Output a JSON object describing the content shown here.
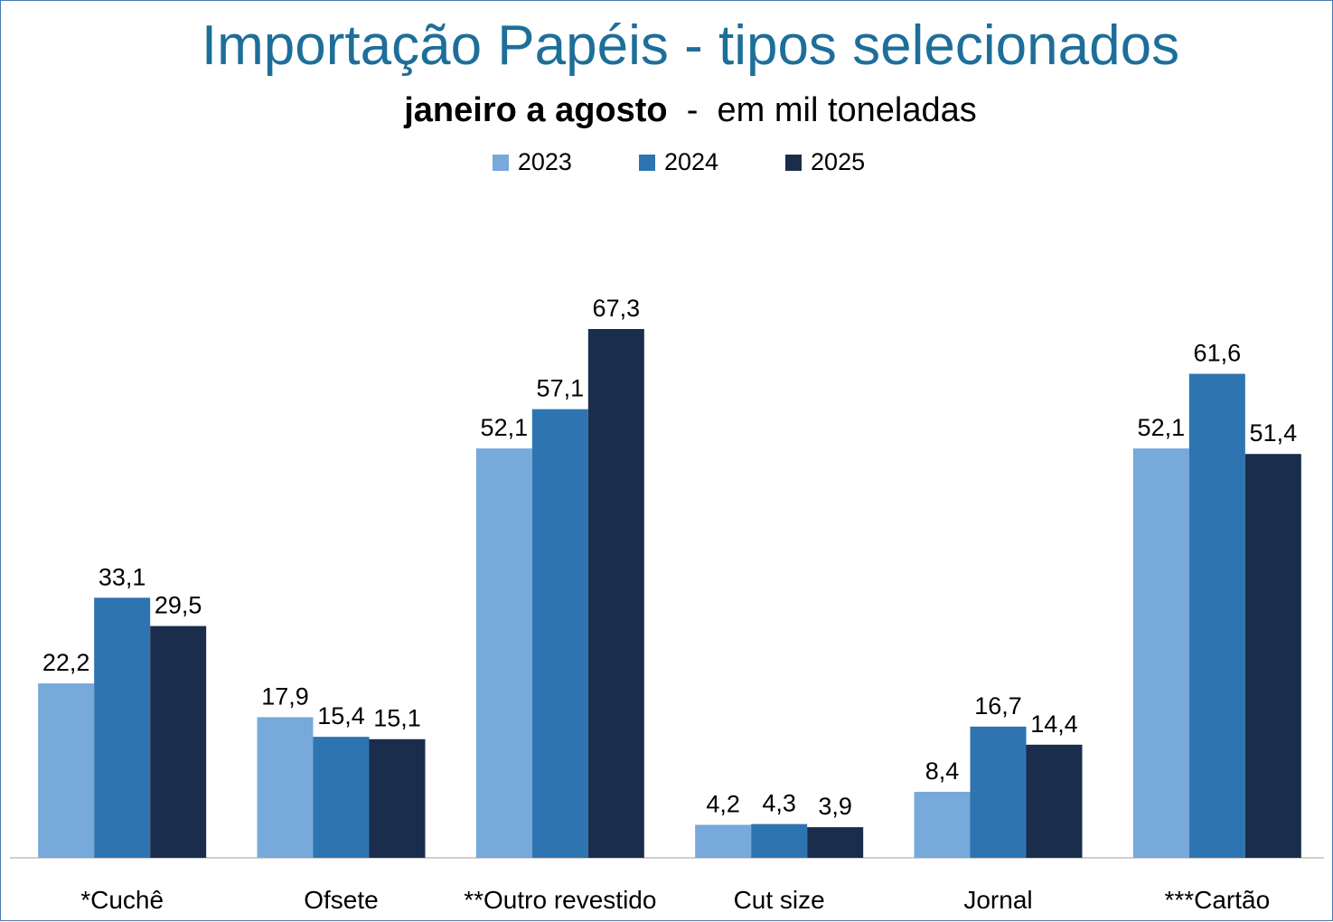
{
  "chart_data": {
    "type": "bar",
    "title": "Importação Papéis - tipos selecionados",
    "subtitle_bold": "janeiro a agosto",
    "subtitle_rest": "  -  em mil toneladas",
    "categories": [
      "*Cuchê",
      "Ofsete",
      "**Outro revestido",
      "Cut size",
      "Jornal",
      "***Cartão"
    ],
    "series": [
      {
        "name": "2023",
        "color": "#77a9da",
        "values": [
          22.2,
          17.9,
          52.1,
          4.2,
          8.4,
          52.1
        ],
        "labels": [
          "22,2",
          "17,9",
          "52,1",
          "4,2",
          "8,4",
          "52,1"
        ]
      },
      {
        "name": "2024",
        "color": "#2e74b0",
        "values": [
          33.1,
          15.4,
          57.1,
          4.3,
          16.7,
          61.6
        ],
        "labels": [
          "33,1",
          "15,4",
          "57,1",
          "4,3",
          "16,7",
          "61,6"
        ]
      },
      {
        "name": "2025",
        "color": "#1b2d4c",
        "values": [
          29.5,
          15.1,
          67.3,
          3.9,
          14.4,
          51.4
        ],
        "labels": [
          "29,5",
          "15,1",
          "67,3",
          "3,9",
          "14,4",
          "51,4"
        ]
      }
    ],
    "ylim": [
      0,
      67.3
    ],
    "grid": false,
    "legend_position": "top"
  }
}
